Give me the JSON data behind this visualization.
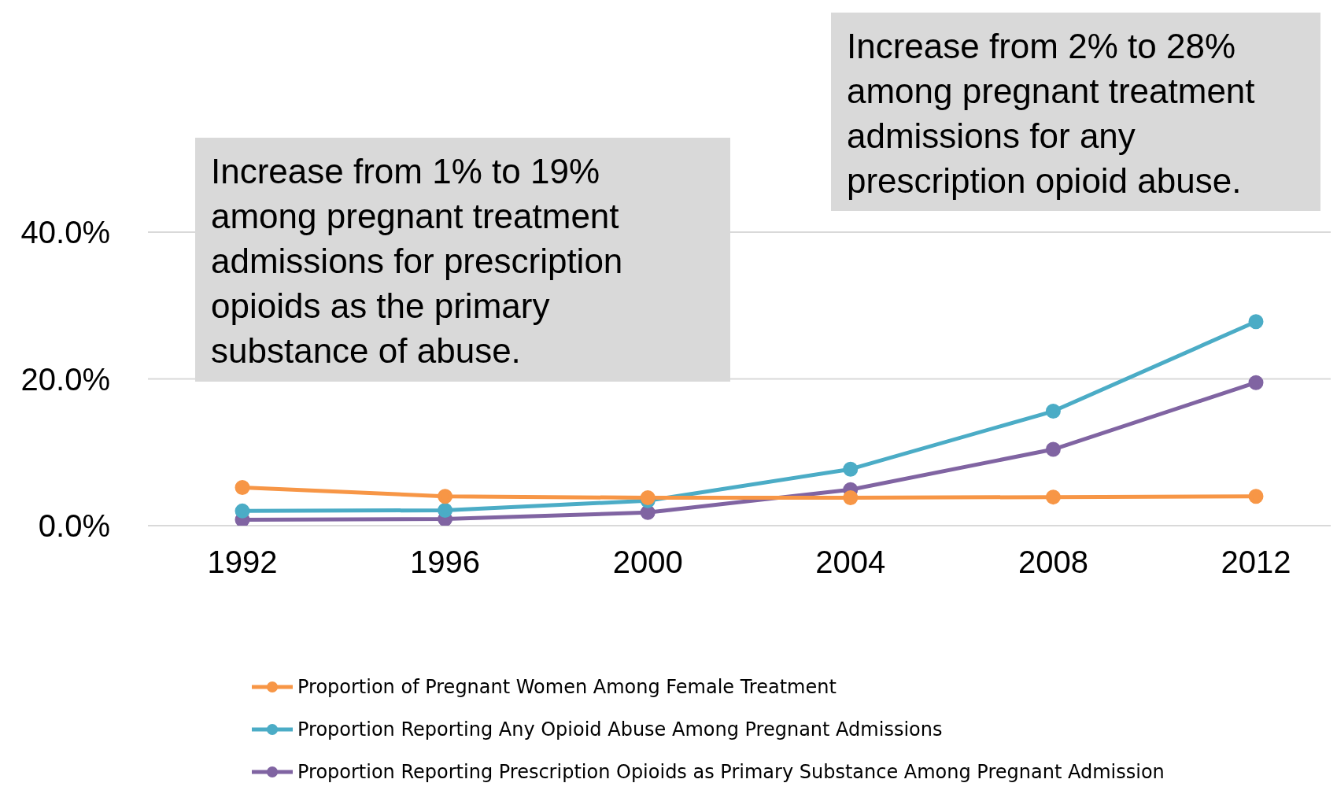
{
  "chart_data": {
    "type": "line",
    "categories": [
      "1992",
      "1996",
      "2000",
      "2004",
      "2008",
      "2012"
    ],
    "series": [
      {
        "name": "Proportion of Pregnant Women Among Female Treatment",
        "color": "#f79646",
        "values": [
          5.2,
          4.0,
          3.8,
          3.8,
          3.9,
          4.0
        ]
      },
      {
        "name": "Proportion Reporting Any Opioid Abuse Among Pregnant Admissions",
        "color": "#4bacc6",
        "values": [
          2.0,
          2.1,
          3.4,
          7.7,
          15.6,
          27.8
        ]
      },
      {
        "name": "Proportion Reporting Prescription Opioids as Primary Substance Among Pregnant Admission",
        "color": "#8064a2",
        "values": [
          0.8,
          0.9,
          1.8,
          4.9,
          10.4,
          19.5
        ]
      }
    ],
    "ylim": [
      0,
      40
    ],
    "yticks": [
      {
        "value": 0,
        "label": "0.0%"
      },
      {
        "value": 20,
        "label": "20.0%"
      },
      {
        "value": 40,
        "label": "40.0%"
      }
    ],
    "grid": "y",
    "legend": "bottom",
    "marker": "circle",
    "line_style": "solid",
    "annotations": [
      "Increase from 1% to 19% among pregnant treatment admissions for prescription opioids as the primary substance of abuse.",
      "Increase from 2% to 28% among pregnant treatment admissions for any prescription opioid abuse."
    ]
  }
}
